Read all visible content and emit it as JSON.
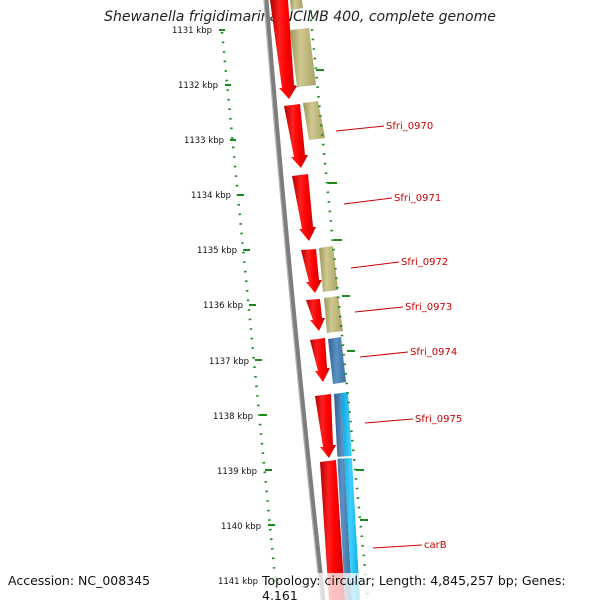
{
  "title": "Shewanella frigidimarina NCIMB 400, complete genome",
  "footer": {
    "accession": "Accession: NC_008345",
    "summary": "Topology: circular; Length: 4,845,257 bp; Genes: 4,161"
  },
  "scale_ticks": [
    "1131 kbp",
    "1132 kbp",
    "1133 kbp",
    "1134 kbp",
    "1135 kbp",
    "1136 kbp",
    "1137 kbp",
    "1138 kbp",
    "1139 kbp",
    "1140 kbp",
    "1141 kbp"
  ],
  "gene_labels": [
    "Sfri_0970",
    "Sfri_0971",
    "Sfri_0972",
    "Sfri_0973",
    "Sfri_0974",
    "Sfri_0975",
    "carB"
  ],
  "colors": {
    "forward_cds": "#ff0000",
    "reverse_cds": "#bdb76b",
    "blue_feature": "#4682b4",
    "cyan_feature": "#00bfff",
    "backbone": "#808080",
    "gc_dots": "#008000",
    "label": "#cc0000"
  }
}
